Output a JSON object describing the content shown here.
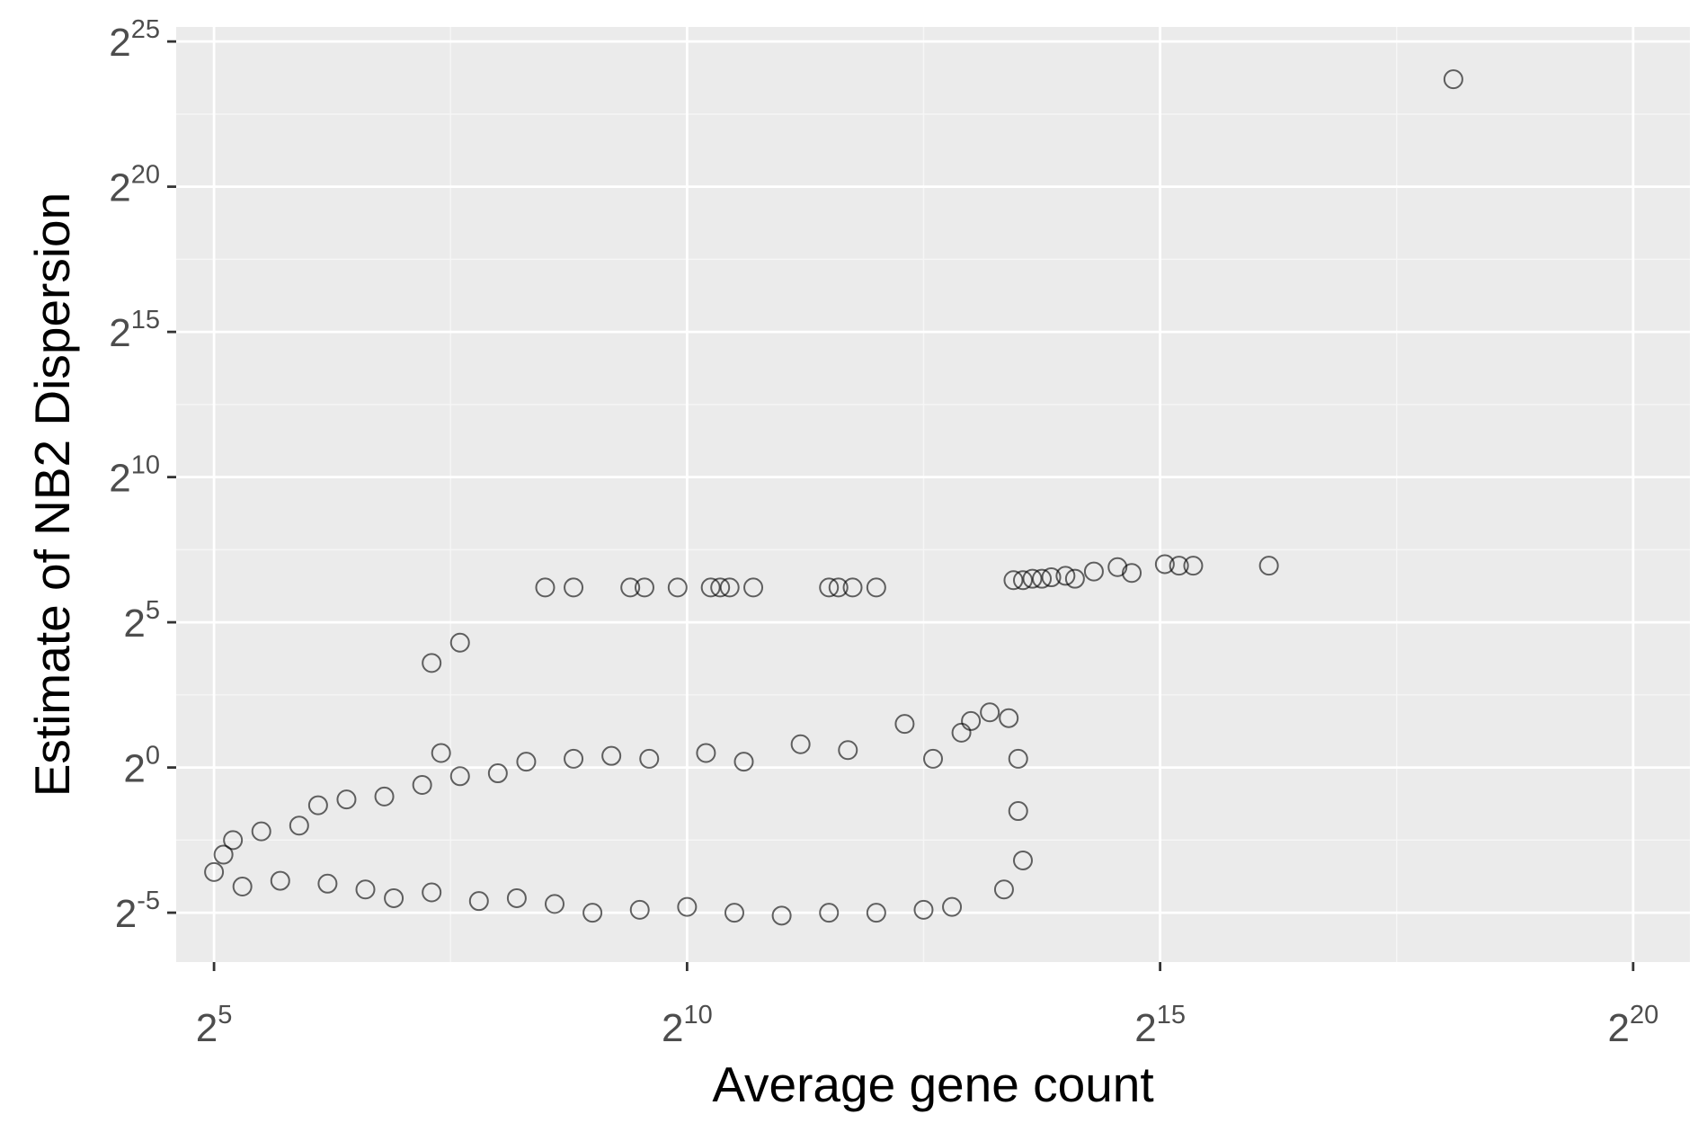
{
  "chart_data": {
    "type": "scatter",
    "xlabel": "Average gene count",
    "ylabel": "Estimate of NB2 Dispersion",
    "x_scale": "log2",
    "y_scale": "log2",
    "xlim_log2": [
      4.6,
      20.6
    ],
    "ylim_log2": [
      -6.7,
      25.5
    ],
    "x_ticks": [
      {
        "base": "2",
        "exp": "5"
      },
      {
        "base": "2",
        "exp": "10"
      },
      {
        "base": "2",
        "exp": "15"
      },
      {
        "base": "2",
        "exp": "20"
      }
    ],
    "y_ticks": [
      {
        "base": "2",
        "exp": "-5"
      },
      {
        "base": "2",
        "exp": "0"
      },
      {
        "base": "2",
        "exp": "5"
      },
      {
        "base": "2",
        "exp": "10"
      },
      {
        "base": "2",
        "exp": "15"
      },
      {
        "base": "2",
        "exp": "20"
      },
      {
        "base": "2",
        "exp": "25"
      }
    ],
    "grid": true,
    "legend": "none",
    "marker": "open-circle",
    "colors": {
      "panel": "#ebebeb",
      "grid_major": "#ffffff",
      "grid_minor": "#f6f6f6",
      "point": "#000000",
      "tick": "#333333",
      "tick_label": "#4d4d4d"
    },
    "points_log2": [
      [
        18.1,
        23.7
      ],
      [
        7.3,
        3.6
      ],
      [
        7.6,
        4.3
      ],
      [
        7.4,
        0.5
      ],
      [
        8.5,
        6.2
      ],
      [
        8.8,
        6.2
      ],
      [
        9.4,
        6.2
      ],
      [
        9.55,
        6.2
      ],
      [
        9.9,
        6.2
      ],
      [
        10.25,
        6.2
      ],
      [
        10.35,
        6.2
      ],
      [
        10.45,
        6.2
      ],
      [
        10.7,
        6.2
      ],
      [
        11.5,
        6.2
      ],
      [
        11.6,
        6.2
      ],
      [
        11.75,
        6.2
      ],
      [
        12.0,
        6.2
      ],
      [
        13.45,
        6.45
      ],
      [
        13.55,
        6.45
      ],
      [
        13.65,
        6.5
      ],
      [
        13.75,
        6.5
      ],
      [
        13.85,
        6.55
      ],
      [
        14.0,
        6.6
      ],
      [
        14.1,
        6.5
      ],
      [
        14.3,
        6.75
      ],
      [
        14.55,
        6.9
      ],
      [
        14.7,
        6.7
      ],
      [
        15.05,
        7.0
      ],
      [
        15.2,
        6.95
      ],
      [
        15.35,
        6.95
      ],
      [
        16.15,
        6.95
      ],
      [
        5.0,
        -3.6
      ],
      [
        5.1,
        -3.0
      ],
      [
        5.2,
        -2.5
      ],
      [
        5.3,
        -4.1
      ],
      [
        5.5,
        -2.2
      ],
      [
        5.7,
        -3.9
      ],
      [
        5.9,
        -2.0
      ],
      [
        6.1,
        -1.3
      ],
      [
        6.2,
        -4.0
      ],
      [
        6.4,
        -1.1
      ],
      [
        6.6,
        -4.2
      ],
      [
        6.8,
        -1.0
      ],
      [
        6.9,
        -4.5
      ],
      [
        7.2,
        -0.6
      ],
      [
        7.3,
        -4.3
      ],
      [
        7.6,
        -0.3
      ],
      [
        7.8,
        -4.6
      ],
      [
        8.0,
        -0.2
      ],
      [
        8.2,
        -4.5
      ],
      [
        8.3,
        0.2
      ],
      [
        8.6,
        -4.7
      ],
      [
        8.8,
        0.3
      ],
      [
        9.0,
        -5.0
      ],
      [
        9.2,
        0.4
      ],
      [
        9.5,
        -4.9
      ],
      [
        9.6,
        0.3
      ],
      [
        10.0,
        -4.8
      ],
      [
        10.2,
        0.5
      ],
      [
        10.5,
        -5.0
      ],
      [
        10.6,
        0.2
      ],
      [
        11.0,
        -5.1
      ],
      [
        11.2,
        0.8
      ],
      [
        11.5,
        -5.0
      ],
      [
        11.7,
        0.6
      ],
      [
        12.0,
        -5.0
      ],
      [
        12.3,
        1.5
      ],
      [
        12.5,
        -4.9
      ],
      [
        12.6,
        0.3
      ],
      [
        12.8,
        -4.8
      ],
      [
        12.9,
        1.2
      ],
      [
        13.0,
        1.6
      ],
      [
        13.2,
        1.9
      ],
      [
        13.4,
        1.7
      ],
      [
        13.5,
        0.3
      ],
      [
        13.55,
        -3.2
      ],
      [
        13.35,
        -4.2
      ],
      [
        13.5,
        -1.5
      ]
    ]
  }
}
